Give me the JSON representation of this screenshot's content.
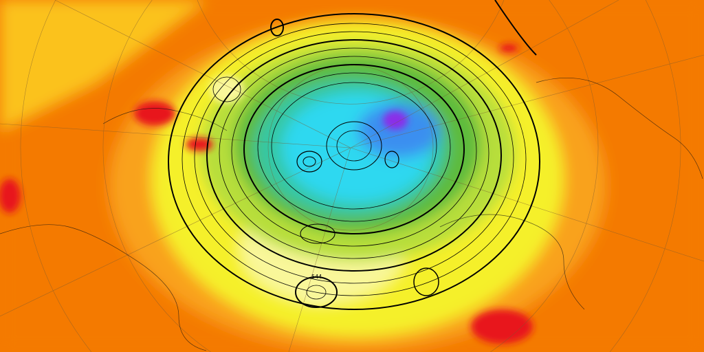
{
  "map": {
    "colors": {
      "background": "#f47a00",
      "orange_light": "#f9a21a",
      "yellow_orange": "#fbc21e",
      "yellow": "#f5f02a",
      "pale_yellow": "#f9f79a",
      "green_yellow": "#b7de3a",
      "green": "#5dbb3c",
      "teal": "#36c7a3",
      "cyan": "#2fd8f0",
      "blue": "#3a8ff0",
      "purple": "#8a2ee8",
      "red": "#e8141a"
    },
    "contour_labels": [
      "544"
    ]
  }
}
